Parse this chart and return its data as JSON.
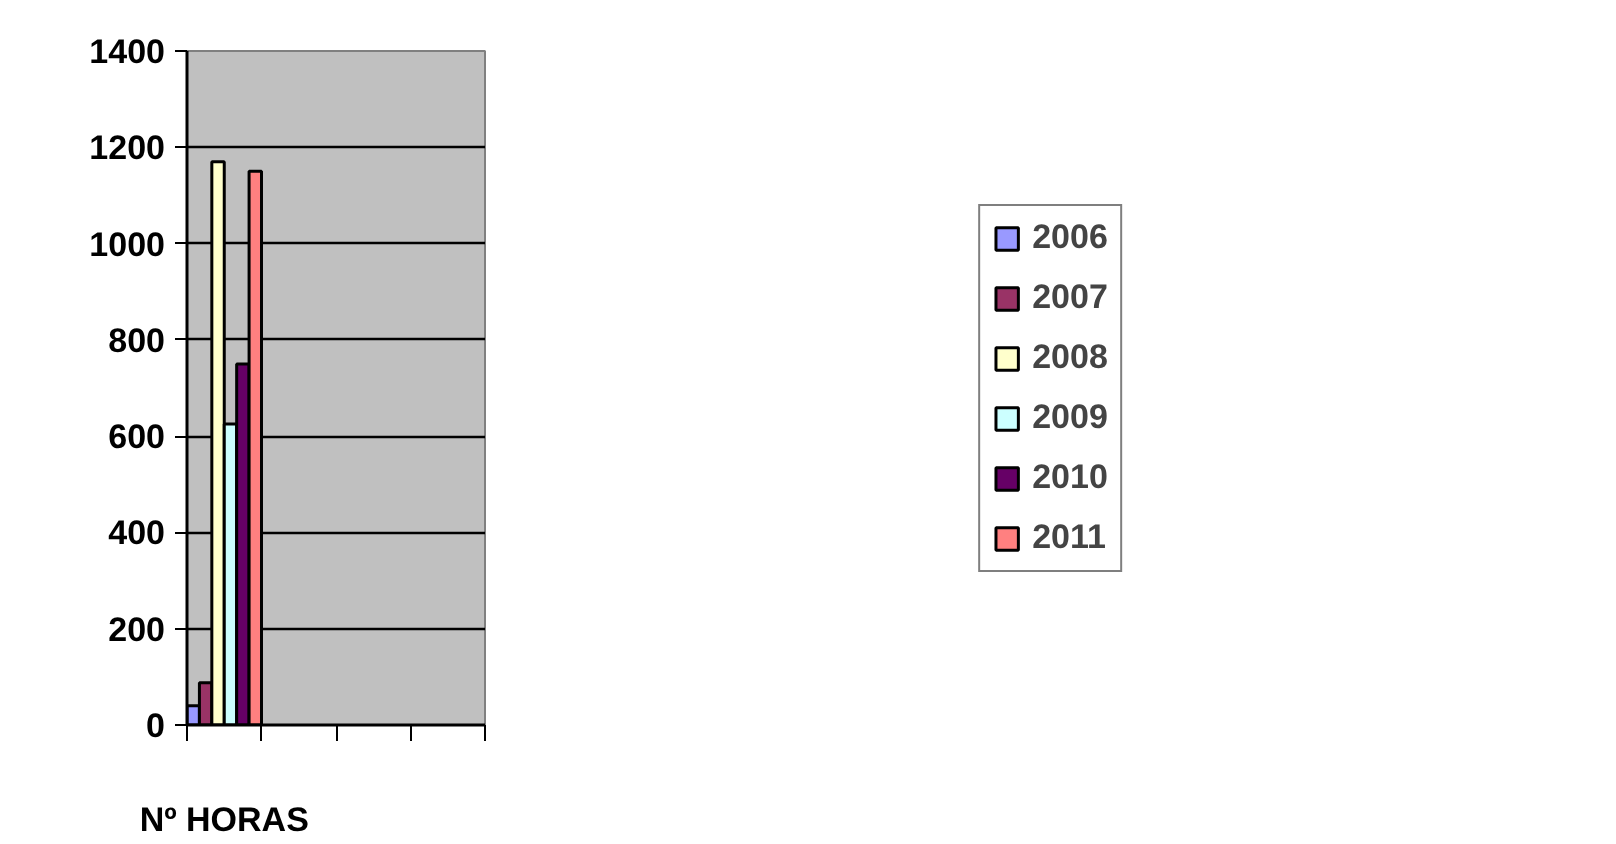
{
  "chart_data": {
    "type": "bar",
    "categories": [
      "Nº HORAS",
      null,
      null,
      null
    ],
    "series": [
      {
        "name": "2006",
        "color": "#9999ff",
        "values": [
          40,
          null,
          null,
          null
        ]
      },
      {
        "name": "2007",
        "color": "#993366",
        "values": [
          88,
          null,
          null,
          null
        ]
      },
      {
        "name": "2008",
        "color": "#ffffcc",
        "values": [
          1170,
          null,
          null,
          null
        ]
      },
      {
        "name": "2009",
        "color": "#ccffff",
        "values": [
          625,
          null,
          null,
          null
        ]
      },
      {
        "name": "2010",
        "color": "#660066",
        "values": [
          750,
          null,
          null,
          null
        ]
      },
      {
        "name": "2011",
        "color": "#ff8080",
        "values": [
          1150,
          null,
          null,
          null
        ]
      }
    ],
    "ylim": [
      0,
      1400
    ],
    "yticks": [
      0,
      200,
      400,
      600,
      800,
      1000,
      1200,
      1400
    ],
    "grid": "y",
    "legend": "right"
  }
}
